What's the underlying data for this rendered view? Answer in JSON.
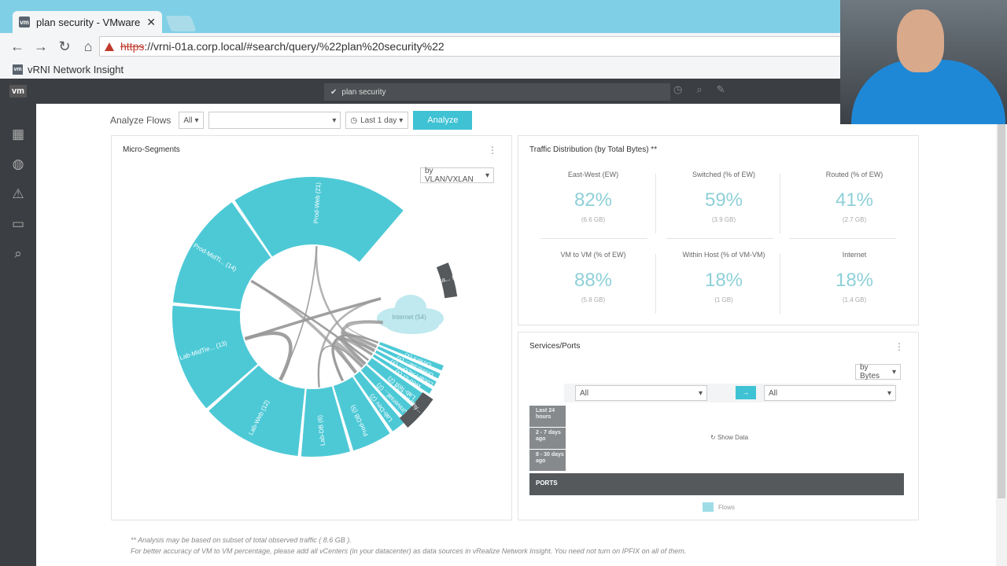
{
  "browser": {
    "tab_title": "plan security - VMware",
    "url_scheme": "https",
    "url_rest": "://vrni-01a.corp.local/#search/query/%22plan%20security%22",
    "bookmark": "vRNI Network Insight",
    "favicon_text": "vm"
  },
  "app": {
    "logo": "vm",
    "search_query": "plan security"
  },
  "filters": {
    "label": "Analyze Flows",
    "scope": "All",
    "time": "Last 1 day",
    "button": "Analyze"
  },
  "micro_segments": {
    "title": "Micro-Segments",
    "group_by": "by VLAN/VXLAN",
    "segments": [
      {
        "label": "Prod-Web (21)",
        "value": 21
      },
      {
        "label": "Prod-MidTi... (14)",
        "value": 14
      },
      {
        "label": "Lab-MidTie... (13)",
        "value": 13
      },
      {
        "label": "Lab-Web (12)",
        "value": 12
      },
      {
        "label": "Lab-DB (6)",
        "value": 6
      },
      {
        "label": "Prod-DB (5)",
        "value": 5
      },
      {
        "label": "Lab-Dev (2)",
        "value": 2
      },
      {
        "label": "Universal... (2)",
        "value": 2
      },
      {
        "label": "Lab-Test (2)",
        "value": 2
      },
      {
        "label": "Web-Et (1)",
        "value": 1
      },
      {
        "label": "Local-PALO... (1)",
        "value": 1
      },
      {
        "label": "Universal... (1)",
        "value": 1
      },
      {
        "label": "Others (1)",
        "value": 1
      }
    ],
    "external": [
      {
        "label": "DC Physica... (24)"
      },
      {
        "label": "Internet (54)"
      },
      {
        "label": "Shared Phy... (2)"
      }
    ]
  },
  "traffic": {
    "title": "Traffic Distribution (by Total Bytes) **",
    "metrics": [
      {
        "label": "East-West (EW)",
        "value": "82%",
        "sub": "(6.6 GB)"
      },
      {
        "label": "Switched (% of EW)",
        "value": "59%",
        "sub": "(3.9 GB)"
      },
      {
        "label": "Routed (% of EW)",
        "value": "41%",
        "sub": "(2.7 GB)"
      },
      {
        "label": "VM to VM (% of EW)",
        "value": "88%",
        "sub": "(5.8 GB)"
      },
      {
        "label": "Within Host (% of VM-VM)",
        "value": "18%",
        "sub": "(1 GB)"
      },
      {
        "label": "Internet",
        "value": "18%",
        "sub": "(1.4 GB)"
      }
    ]
  },
  "services": {
    "title": "Services/Ports",
    "metric": "by Bytes",
    "left_filter": "All",
    "right_filter": "All",
    "rows": [
      "Last 24 hours",
      "2 - 7 days ago",
      "8 - 30 days ago"
    ],
    "show_data": "Show Data",
    "ports_label": "PORTS",
    "legend": "Flows"
  },
  "footnote": {
    "line1": "** Analysis may be based on subset of total observed traffic ( 8.6 GB ).",
    "line2": "For better accuracy of VM to VM percentage, please add all vCenters (in your datacenter) as data sources in vRealize Network Insight. You need not turn on IPFIX on all of them."
  },
  "colors": {
    "teal": "#4dc9d6",
    "dark_segment": "#56595c",
    "chord": "#9a9a9a"
  }
}
